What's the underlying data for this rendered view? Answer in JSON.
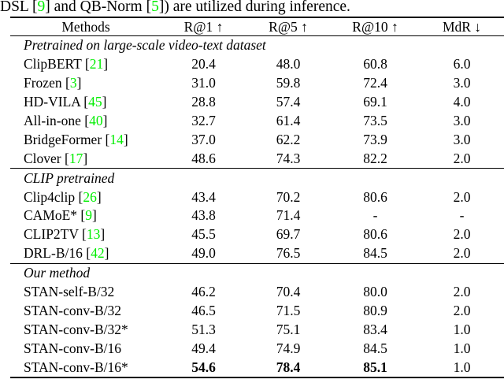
{
  "caption": {
    "segments": [
      {
        "text": "DSL [",
        "link": false
      },
      {
        "text": "9",
        "link": true
      },
      {
        "text": "] and QB-Norm [",
        "link": false
      },
      {
        "text": "5",
        "link": true
      },
      {
        "text": "]) are utilized during inference.",
        "link": false
      }
    ]
  },
  "colors": {
    "citation_green": "#00EE00",
    "text": "#000000",
    "background": "#FFFFFF"
  },
  "table": {
    "headers": [
      "Methods",
      "R@1 ↑",
      "R@5 ↑",
      "R@10 ↑",
      "MdR ↓"
    ],
    "sections": [
      {
        "label": "Pretrained on large-scale video-text dataset",
        "rows": [
          {
            "name": "ClipBERT",
            "cite": "21",
            "values": [
              "20.4",
              "48.0",
              "60.8",
              "6.0"
            ]
          },
          {
            "name": "Frozen",
            "cite": "3",
            "values": [
              "31.0",
              "59.8",
              "72.4",
              "3.0"
            ]
          },
          {
            "name": "HD-VILA",
            "cite": "45",
            "values": [
              "28.8",
              "57.4",
              "69.1",
              "4.0"
            ]
          },
          {
            "name": "All-in-one",
            "cite": "40",
            "values": [
              "32.7",
              "61.4",
              "73.5",
              "3.0"
            ]
          },
          {
            "name": "BridgeFormer",
            "cite": "14",
            "values": [
              "37.0",
              "62.2",
              "73.9",
              "3.0"
            ]
          },
          {
            "name": "Clover",
            "cite": "17",
            "values": [
              "48.6",
              "74.3",
              "82.2",
              "2.0"
            ]
          }
        ]
      },
      {
        "label": "CLIP pretrained",
        "rows": [
          {
            "name": "Clip4clip",
            "cite": "26",
            "values": [
              "43.4",
              "70.2",
              "80.6",
              "2.0"
            ]
          },
          {
            "name": "CAMoE*",
            "cite": "9",
            "values": [
              "43.8",
              "71.4",
              "-",
              "-"
            ]
          },
          {
            "name": "CLIP2TV",
            "cite": "13",
            "values": [
              "45.5",
              "69.7",
              "80.6",
              "2.0"
            ]
          },
          {
            "name": "DRL-B/16",
            "cite": "42",
            "values": [
              "49.0",
              "76.5",
              "84.5",
              "2.0"
            ]
          }
        ]
      },
      {
        "label": "Our method",
        "rows": [
          {
            "name": "STAN-self-B/32",
            "cite": "",
            "values": [
              "46.2",
              "70.4",
              "80.0",
              "2.0"
            ]
          },
          {
            "name": "STAN-conv-B/32",
            "cite": "",
            "values": [
              "46.5",
              "71.5",
              "80.9",
              "2.0"
            ]
          },
          {
            "name": "STAN-conv-B/32*",
            "cite": "",
            "values": [
              "51.3",
              "75.1",
              "83.4",
              "1.0"
            ]
          },
          {
            "name": "STAN-conv-B/16",
            "cite": "",
            "values": [
              "49.4",
              "74.9",
              "84.5",
              "1.0"
            ]
          },
          {
            "name": "STAN-conv-B/16*",
            "cite": "",
            "values": [
              "54.6",
              "78.4",
              "85.1",
              "1.0"
            ],
            "bold": [
              true,
              true,
              true,
              false
            ]
          }
        ]
      }
    ]
  }
}
